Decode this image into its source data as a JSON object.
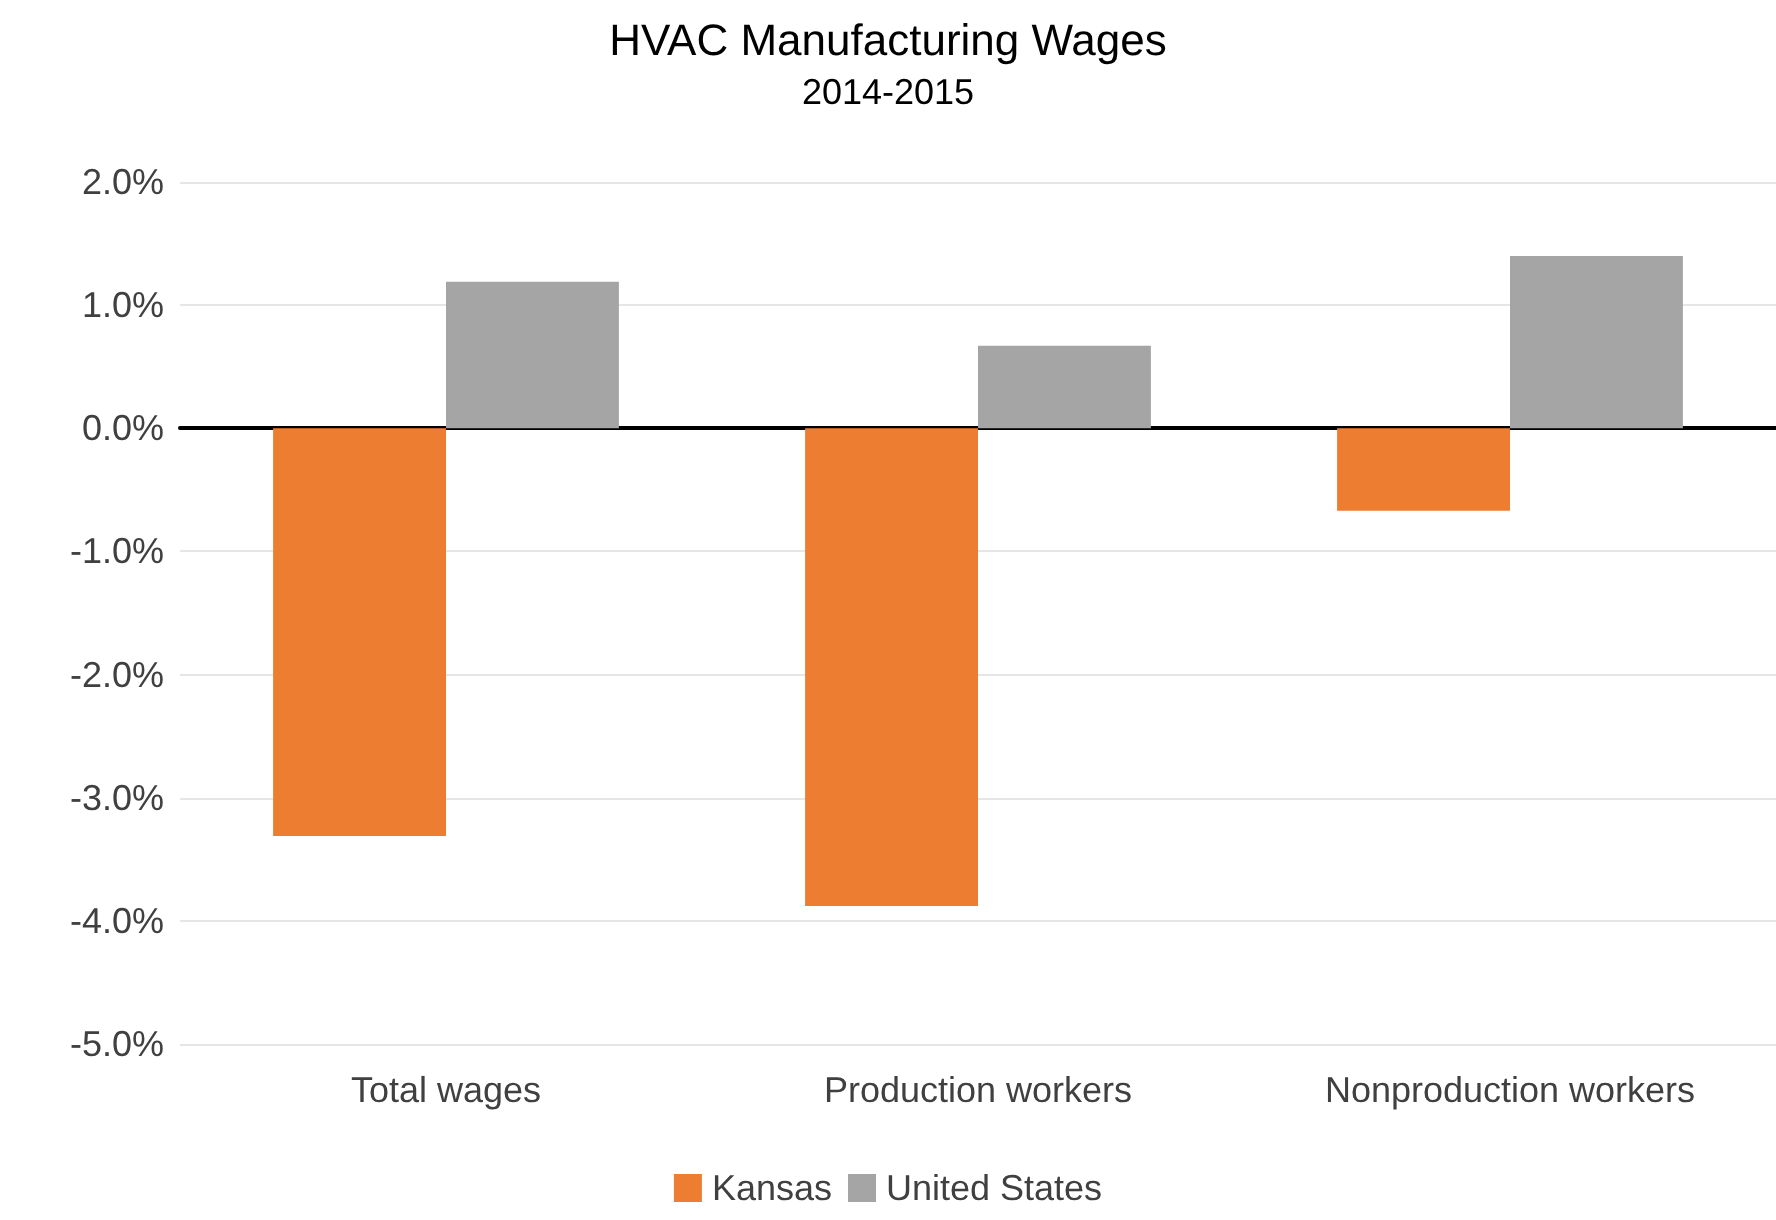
{
  "chart_data": {
    "type": "bar",
    "title": "HVAC Manufacturing Wages",
    "subtitle": "2014-2015",
    "categories": [
      "Total wages",
      "Production workers",
      "Nonproduction workers"
    ],
    "series": [
      {
        "name": "Kansas",
        "color": "#ed7d31",
        "values": [
          -3.31,
          -3.88,
          -0.67
        ]
      },
      {
        "name": "United States",
        "color": "#a5a5a5",
        "values": [
          1.19,
          0.67,
          1.4
        ]
      }
    ],
    "ylim": [
      -5,
      2
    ],
    "yticks": [
      {
        "value": -5,
        "label": "-5.0%"
      },
      {
        "value": -4,
        "label": "-4.0%"
      },
      {
        "value": -3,
        "label": "-3.0%"
      },
      {
        "value": -2,
        "label": "-2.0%"
      },
      {
        "value": -1,
        "label": "-1.0%"
      },
      {
        "value": 0,
        "label": "0.0%"
      },
      {
        "value": 1,
        "label": "1.0%"
      },
      {
        "value": 2,
        "label": "2.0%"
      }
    ],
    "grid": "y",
    "legend": "bottom"
  }
}
